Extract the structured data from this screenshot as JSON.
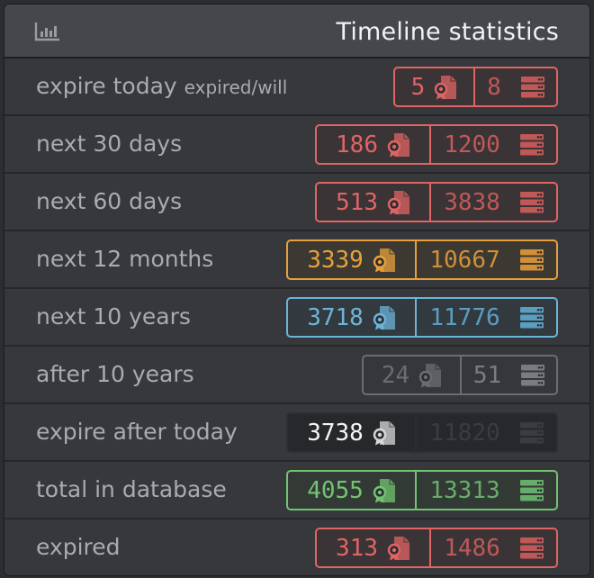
{
  "header": {
    "title": "Timeline statistics",
    "icon": "bar-chart-icon"
  },
  "rows": [
    {
      "label": "expire today",
      "sublabel": "expired/will",
      "certs": "5",
      "servers": "8",
      "color": "#e06464",
      "color2": "#c05858",
      "bg": "#3a3436",
      "w": 183,
      "s1": 89
    },
    {
      "label": "next 30 days",
      "certs": "186",
      "servers": "1200",
      "color": "#e06464",
      "color2": "#c05858",
      "bg": "#3a3436",
      "w": 270,
      "s1": 127
    },
    {
      "label": "next 60 days",
      "certs": "513",
      "servers": "3838",
      "color": "#e06464",
      "color2": "#c05858",
      "bg": "#3a3436",
      "w": 270,
      "s1": 127
    },
    {
      "label": "next 12 months",
      "certs": "3339",
      "servers": "10667",
      "color": "#e8a03c",
      "color2": "#d19038",
      "bg": "#3c3832",
      "w": 302,
      "s1": 143
    },
    {
      "label": "next 10 years",
      "certs": "3718",
      "servers": "11776",
      "color": "#6cb4d8",
      "color2": "#5a9ec2",
      "bg": "#333a3f",
      "w": 302,
      "s1": 143
    },
    {
      "label": "after 10 years",
      "certs": "24",
      "servers": "51",
      "color": "#6b6d71",
      "color2": "#7a7c80",
      "bg": "#35373b",
      "w": 218,
      "s1": 109
    },
    {
      "label": "expire after today",
      "certs": "3738",
      "servers": "11820",
      "color": "#2c2e32",
      "color2": "#3a3c40",
      "bg": "#26282b",
      "w": 302,
      "s1": 143,
      "textColor": "#f4f4f4"
    },
    {
      "label": "total in database",
      "certs": "4055",
      "servers": "13313",
      "color": "#72c472",
      "color2": "#66ad6a",
      "bg": "#333a35",
      "w": 302,
      "s1": 143
    },
    {
      "label": "expired",
      "certs": "313",
      "servers": "1486",
      "color": "#e06464",
      "color2": "#c05858",
      "bg": "#3a3436",
      "w": 270,
      "s1": 127
    }
  ],
  "icons": {
    "certificate": "certificate-icon",
    "server": "server-icon"
  }
}
